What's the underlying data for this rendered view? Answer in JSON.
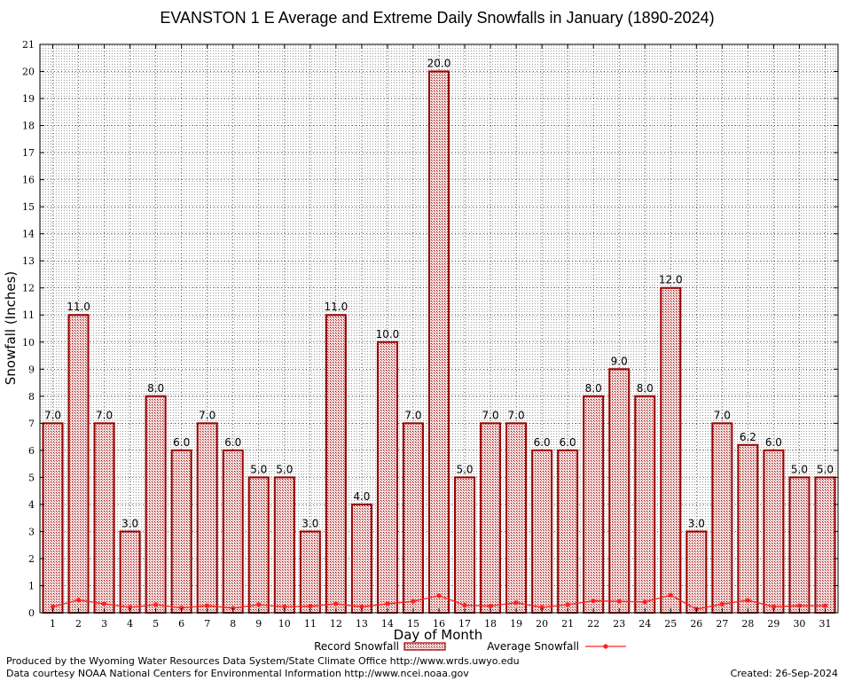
{
  "chart_data": {
    "type": "bar",
    "title": "EVANSTON 1 E Average and Extreme Daily Snowfalls in January (1890-2024)",
    "xlabel": "Day of Month",
    "ylabel": "Snowfall (Inches)",
    "ylim": [
      0,
      21
    ],
    "y_ticks": [
      0,
      1,
      2,
      3,
      4,
      5,
      6,
      7,
      8,
      9,
      10,
      11,
      12,
      13,
      14,
      15,
      16,
      17,
      18,
      19,
      20,
      21
    ],
    "grid": true,
    "categories": [
      "1",
      "2",
      "3",
      "4",
      "5",
      "6",
      "7",
      "8",
      "9",
      "10",
      "11",
      "12",
      "13",
      "14",
      "15",
      "16",
      "17",
      "18",
      "19",
      "20",
      "21",
      "22",
      "23",
      "24",
      "25",
      "26",
      "27",
      "28",
      "29",
      "30",
      "31"
    ],
    "series": [
      {
        "name": "Record Snowfall",
        "kind": "bar",
        "color": "#990000",
        "values": [
          7.0,
          11.0,
          7.0,
          3.0,
          8.0,
          6.0,
          7.0,
          6.0,
          5.0,
          5.0,
          3.0,
          11.0,
          4.0,
          10.0,
          7.0,
          20.0,
          5.0,
          7.0,
          7.0,
          6.0,
          6.0,
          8.0,
          9.0,
          8.0,
          12.0,
          3.0,
          7.0,
          6.2,
          6.0,
          5.0,
          5.0
        ],
        "labels": [
          "7.0",
          "11.0",
          "7.0",
          "3.0",
          "8.0",
          "6.0",
          "7.0",
          "6.0",
          "5.0",
          "5.0",
          "3.0",
          "11.0",
          "4.0",
          "10.0",
          "7.0",
          "20.0",
          "5.0",
          "7.0",
          "7.0",
          "6.0",
          "6.0",
          "8.0",
          "9.0",
          "8.0",
          "12.0",
          "3.0",
          "7.0",
          "6.2",
          "6.0",
          "5.0",
          "5.0"
        ]
      },
      {
        "name": "Average Snowfall",
        "kind": "line",
        "color": "#ff2020",
        "values": [
          0.22,
          0.47,
          0.33,
          0.2,
          0.3,
          0.18,
          0.26,
          0.17,
          0.3,
          0.22,
          0.24,
          0.33,
          0.22,
          0.33,
          0.42,
          0.63,
          0.28,
          0.25,
          0.37,
          0.2,
          0.3,
          0.44,
          0.42,
          0.4,
          0.65,
          0.13,
          0.32,
          0.46,
          0.22,
          0.26,
          0.26
        ]
      }
    ],
    "legend_position": "bottom-center"
  },
  "footer": {
    "line1": "Produced by the Wyoming Water Resources Data System/State Climate Office http://www.wrds.uwyo.edu",
    "line2": "Data courtesy NOAA National Centers for Environmental Information http://www.ncei.noaa.gov",
    "created": "Created: 26-Sep-2024"
  }
}
